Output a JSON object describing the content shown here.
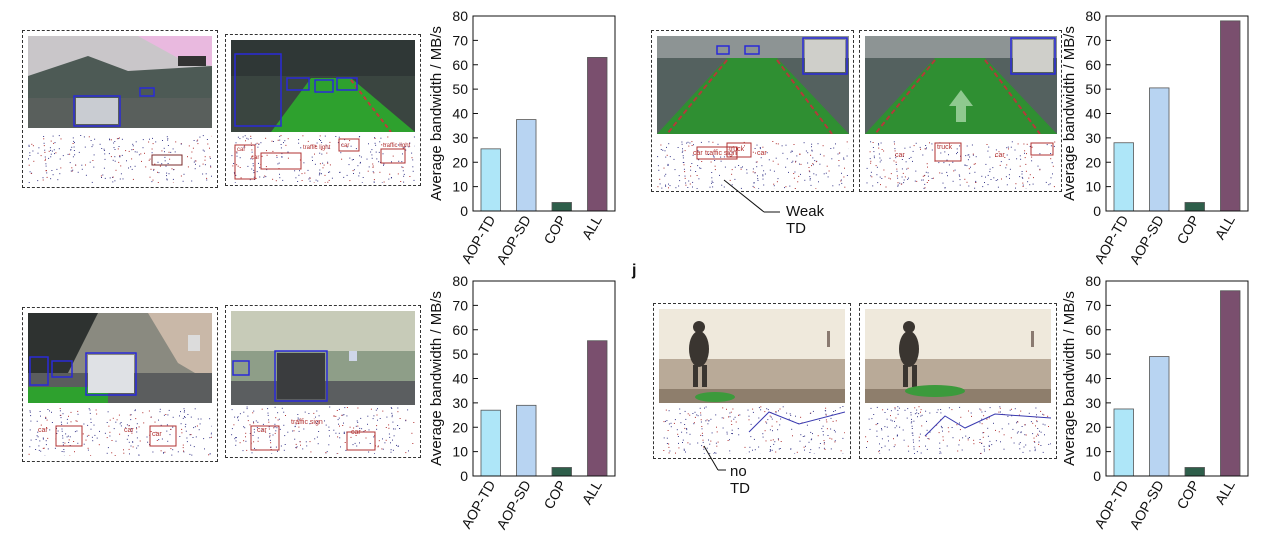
{
  "annotations": {
    "weak_td": "Weak TD",
    "no_td": "no TD",
    "panel_j": "j"
  },
  "chart_data": [
    {
      "type": "bar",
      "categories": [
        "AOP-TD",
        "AOP-SD",
        "COP",
        "ALL"
      ],
      "values": [
        25.5,
        37.5,
        3.5,
        63
      ],
      "ylabel": "Average bandwidth / MB/s",
      "ylim": [
        0,
        80
      ],
      "yticks": [
        0,
        10,
        20,
        30,
        40,
        50,
        60,
        70,
        80
      ],
      "colors": [
        "#aee6f8",
        "#b8d4f2",
        "#2e5e4a",
        "#7a4f6e"
      ]
    },
    {
      "type": "bar",
      "categories": [
        "AOP-TD",
        "AOP-SD",
        "COP",
        "ALL"
      ],
      "values": [
        28,
        50.5,
        3.5,
        78
      ],
      "ylabel": "Average bandwidth / MB/s",
      "ylim": [
        0,
        80
      ],
      "yticks": [
        0,
        10,
        20,
        30,
        40,
        50,
        60,
        70,
        80
      ],
      "colors": [
        "#aee6f8",
        "#b8d4f2",
        "#2e5e4a",
        "#7a4f6e"
      ]
    },
    {
      "type": "bar",
      "categories": [
        "AOP-TD",
        "AOP-SD",
        "COP",
        "ALL"
      ],
      "values": [
        27,
        29,
        3.5,
        55.5
      ],
      "ylabel": "Average bandwidth / MB/s",
      "ylim": [
        0,
        80
      ],
      "yticks": [
        0,
        10,
        20,
        30,
        40,
        50,
        60,
        70,
        80
      ],
      "colors": [
        "#aee6f8",
        "#b8d4f2",
        "#2e5e4a",
        "#7a4f6e"
      ]
    },
    {
      "type": "bar",
      "categories": [
        "AOP-TD",
        "AOP-SD",
        "COP",
        "ALL"
      ],
      "values": [
        27.5,
        49,
        3.5,
        76
      ],
      "ylabel": "Average bandwidth / MB/s",
      "ylim": [
        0,
        80
      ],
      "yticks": [
        0,
        10,
        20,
        30,
        40,
        50,
        60,
        70,
        80
      ],
      "colors": [
        "#aee6f8",
        "#b8d4f2",
        "#2e5e4a",
        "#7a4f6e"
      ]
    }
  ],
  "images": [
    {
      "labels": []
    },
    {
      "labels": [
        "car",
        "car",
        "car",
        "traffic light",
        "traffic light"
      ]
    },
    {
      "labels": [
        "truck",
        "car",
        "car",
        "traffic sign"
      ]
    },
    {
      "labels": [
        "truck",
        "car",
        "car"
      ]
    },
    {
      "labels": [
        "car",
        "car",
        "car"
      ]
    },
    {
      "labels": [
        "car",
        "car",
        "traffic sign"
      ]
    },
    {
      "labels": []
    },
    {
      "labels": []
    }
  ]
}
